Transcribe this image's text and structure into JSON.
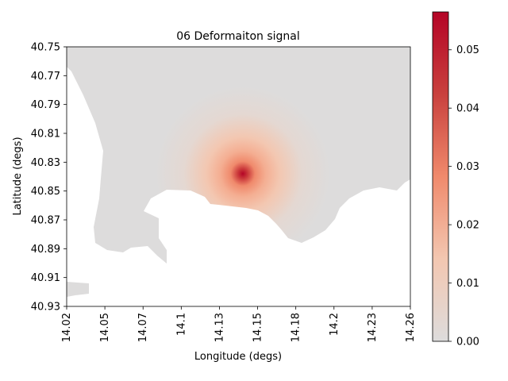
{
  "chart_data": {
    "type": "heatmap",
    "title": "06 Deformaiton signal",
    "xlabel": "Longitude (degs)",
    "ylabel": "Latitude (degs)",
    "xlim": [
      14.02,
      14.26
    ],
    "ylim": [
      40.93,
      40.75
    ],
    "x_ticks": [
      "14.02",
      "14.05",
      "14.07",
      "14.1",
      "14.13",
      "14.15",
      "14.18",
      "14.2",
      "14.23",
      "14.26"
    ],
    "y_ticks": [
      "40.75",
      "40.77",
      "40.79",
      "40.81",
      "40.83",
      "40.85",
      "40.87",
      "40.89",
      "40.91",
      "40.93"
    ],
    "colorbar": {
      "ticks": [
        "0.00",
        "0.01",
        "0.02",
        "0.03",
        "0.04",
        "0.05"
      ],
      "tick_values": [
        0.0,
        0.01,
        0.02,
        0.03,
        0.04,
        0.05
      ],
      "min": 0.0,
      "max": 0.0565,
      "colormap": "coolwarm (upper half)",
      "colors": [
        "#dddcdc",
        "#f3c7b1",
        "#f08a6c",
        "#c9413e",
        "#b40426"
      ]
    },
    "signal_peak": {
      "lon": 14.143,
      "lat": 40.838,
      "value": 0.0565
    },
    "background_value": 0.003,
    "land_color": "#dddcdc",
    "no_data_color": "#ffffff",
    "grid": false
  }
}
